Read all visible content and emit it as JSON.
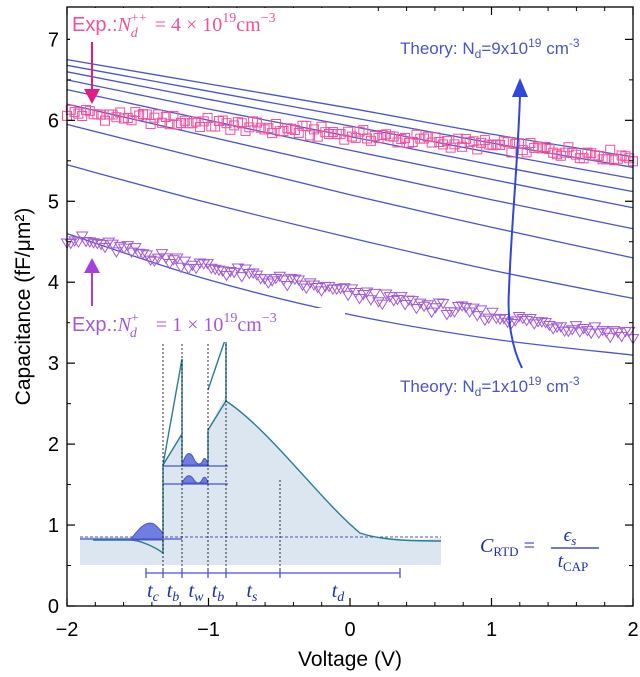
{
  "chart_data": {
    "type": "scatter",
    "xlabel": "Voltage (V)",
    "ylabel": "Capacitance (fF/μm²)",
    "xlim": [
      -2,
      2
    ],
    "ylim": [
      0,
      7.4
    ],
    "xticks": [
      "−2",
      "−1",
      "0",
      "1",
      "2"
    ],
    "yticks": [
      "0",
      "1",
      "2",
      "3",
      "4",
      "5",
      "6",
      "7"
    ],
    "grid": false,
    "colors": {
      "theory": "#4a55c8",
      "exp_high": "#f0509e",
      "exp_low": "#a35ad2",
      "inset_fill": "#dbe6f1",
      "inset_line": "#2a7c92",
      "inset_text": "#1c2fa6"
    },
    "annotations": {
      "exp_high": {
        "prefix": "Exp.:",
        "var": "N",
        "sub": "d",
        "sup": "++",
        "eq": " = 4 × 10",
        "exp": "19",
        "unit": "cm",
        "unit_exp": "−3"
      },
      "exp_low": {
        "prefix": "Exp.:",
        "var": "N",
        "sub": "d",
        "sup": "+",
        "eq": " = 1 × 10",
        "exp": "19",
        "unit": "cm",
        "unit_exp": "−3"
      },
      "theory_top": {
        "prefix": "Theory: N",
        "sub": "d",
        "mid": "=9x10",
        "exp": "19",
        "unit": " cm",
        "unit_exp": "-3"
      },
      "theory_bottom": {
        "prefix": "Theory: N",
        "sub": "d",
        "mid": "=1x10",
        "exp": "19",
        "unit": " cm",
        "unit_exp": "-3"
      }
    },
    "formula": {
      "lhs": "C",
      "lhs_sub": "RTD",
      "numerator": "ϵ",
      "num_sub": "s",
      "denominator": "t",
      "den_sub": "CAP"
    },
    "inset_labels": [
      {
        "var": "t",
        "sub": "c"
      },
      {
        "var": "t",
        "sub": "b"
      },
      {
        "var": "t",
        "sub": "w"
      },
      {
        "var": "t",
        "sub": "b"
      },
      {
        "var": "t",
        "sub": "s"
      },
      {
        "var": "t",
        "sub": "d"
      }
    ],
    "theory_series": [
      {
        "values": [
          [
            -2,
            6.75
          ],
          [
            -1,
            6.45
          ],
          [
            0,
            6.15
          ],
          [
            1,
            5.83
          ],
          [
            2,
            5.55
          ]
        ]
      },
      {
        "values": [
          [
            -2,
            6.68
          ],
          [
            -1,
            6.36
          ],
          [
            0,
            6.04
          ],
          [
            1,
            5.72
          ],
          [
            2,
            5.42
          ]
        ]
      },
      {
        "values": [
          [
            -2,
            6.6
          ],
          [
            -1,
            6.26
          ],
          [
            0,
            5.93
          ],
          [
            1,
            5.6
          ],
          [
            2,
            5.28
          ]
        ]
      },
      {
        "values": [
          [
            -2,
            6.5
          ],
          [
            -1,
            6.14
          ],
          [
            0,
            5.8
          ],
          [
            1,
            5.45
          ],
          [
            2,
            5.12
          ]
        ]
      },
      {
        "values": [
          [
            -2,
            6.38
          ],
          [
            -1,
            6.0
          ],
          [
            0,
            5.63
          ],
          [
            1,
            5.27
          ],
          [
            2,
            4.92
          ]
        ]
      },
      {
        "values": [
          [
            -2,
            6.2
          ],
          [
            -1,
            5.8
          ],
          [
            0,
            5.4
          ],
          [
            1,
            5.02
          ],
          [
            2,
            4.66
          ]
        ]
      },
      {
        "values": [
          [
            -2,
            5.95
          ],
          [
            -1,
            5.51
          ],
          [
            0,
            5.08
          ],
          [
            1,
            4.68
          ],
          [
            2,
            4.3
          ]
        ]
      },
      {
        "values": [
          [
            -2,
            5.45
          ],
          [
            -1,
            4.98
          ],
          [
            0,
            4.55
          ],
          [
            1,
            4.15
          ],
          [
            2,
            3.8
          ]
        ]
      },
      {
        "values": [
          [
            -2,
            4.6
          ],
          [
            -1,
            4.03
          ],
          [
            0,
            3.6
          ],
          [
            1,
            3.3
          ],
          [
            2,
            3.1
          ]
        ]
      }
    ],
    "exp_high_series": {
      "x_start": -2,
      "x_end": 2,
      "count": 150,
      "y_start": 6.1,
      "y_end": 5.55
    },
    "exp_low_series": {
      "x_start": -2,
      "x_end": 2,
      "count": 150,
      "y_start": 4.55,
      "y_end": 3.35
    }
  }
}
